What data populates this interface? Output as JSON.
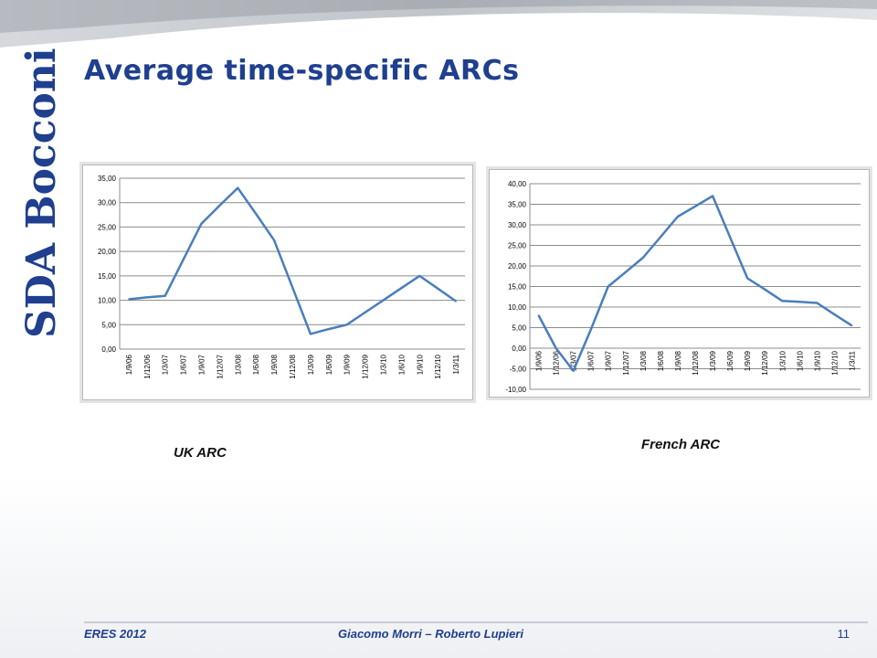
{
  "slide": {
    "title": "Average time-specific ARCs",
    "logo_text": "SDA Bocconi",
    "footer": {
      "left": "ERES 2012",
      "center": "Giacomo Morri – Roberto Lupieri",
      "page_number": "11"
    },
    "captions": {
      "uk": "UK ARC",
      "fr": "French ARC"
    },
    "colors": {
      "title": "#1f3f8f",
      "line": "#4a7ebb",
      "grid": "#8c8c8c",
      "logo": "#1f3f8f"
    }
  },
  "chart_data": [
    {
      "type": "line",
      "title": "",
      "categories": [
        "1/9/06",
        "1/12/06",
        "1/3/07",
        "1/6/07",
        "1/9/07",
        "1/12/07",
        "1/3/08",
        "1/6/08",
        "1/9/08",
        "1/12/08",
        "1/3/09",
        "1/6/09",
        "1/9/09",
        "1/12/09",
        "1/3/10",
        "1/6/10",
        "1/9/10",
        "1/12/10",
        "1/3/11"
      ],
      "series": [
        {
          "values": [
            10.2,
            10.6,
            10.9,
            18.3,
            25.7,
            29.4,
            33.0,
            27.7,
            22.3,
            12.7,
            3.1,
            4.1,
            5.0,
            7.5,
            10.0,
            12.5,
            15.0,
            12.4,
            9.8
          ]
        }
      ],
      "ylim": [
        0,
        35
      ],
      "yticks": [
        "0,00",
        "5,00",
        "10,00",
        "15,00",
        "20,00",
        "25,00",
        "30,00",
        "35,00"
      ],
      "xlabel": "",
      "ylabel": "",
      "grid": true,
      "legend": "none"
    },
    {
      "type": "line",
      "title": "",
      "categories": [
        "1/9/06",
        "1/12/06",
        "1/3/07",
        "1/6/07",
        "1/9/07",
        "1/12/07",
        "1/3/08",
        "1/6/08",
        "1/9/08",
        "1/12/08",
        "1/3/09",
        "1/6/09",
        "1/9/09",
        "1/12/09",
        "1/3/10",
        "1/6/10",
        "1/9/10",
        "1/12/10",
        "1/3/11"
      ],
      "series": [
        {
          "values": [
            8.0,
            0.0,
            -5.5,
            4.5,
            15.0,
            18.5,
            22.0,
            27.0,
            32.0,
            34.5,
            37.0,
            27.0,
            17.0,
            14.3,
            11.5,
            11.3,
            11.0,
            8.2,
            5.5
          ]
        }
      ],
      "ylim": [
        -10,
        40
      ],
      "yticks": [
        "-10,00",
        "-5,00",
        "0,00",
        "5,00",
        "10,00",
        "15,00",
        "20,00",
        "25,00",
        "30,00",
        "35,00",
        "40,00"
      ],
      "xlabel": "",
      "ylabel": "",
      "grid": true,
      "legend": "none"
    }
  ]
}
